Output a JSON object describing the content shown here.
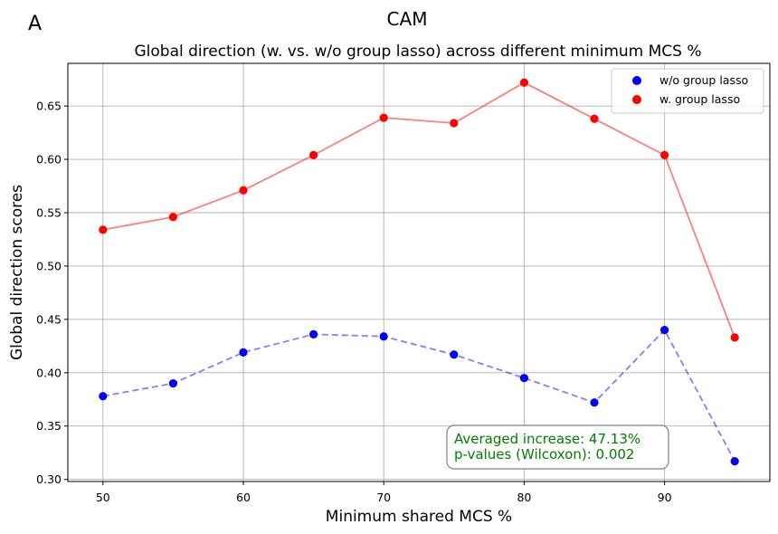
{
  "chart_data": {
    "type": "scatter",
    "panel_label": "A",
    "suptitle": "CAM",
    "title": "Global direction (w. vs. w/o group lasso) across different minimum MCS %",
    "xlabel": "Minimum shared MCS %",
    "ylabel": "Global direction scores",
    "xlim": [
      47.5,
      97.5
    ],
    "ylim": [
      0.298,
      0.69
    ],
    "grid": true,
    "x_ticks": [
      50,
      60,
      70,
      80,
      90
    ],
    "x_tick_labels": [
      "50",
      "60",
      "70",
      "80",
      "90"
    ],
    "y_ticks": [
      0.3,
      0.35,
      0.4,
      0.45,
      0.5,
      0.55,
      0.6,
      0.65
    ],
    "y_tick_labels": [
      "0.30",
      "0.35",
      "0.40",
      "0.45",
      "0.50",
      "0.55",
      "0.60",
      "0.65"
    ],
    "x": [
      50,
      55,
      60,
      65,
      70,
      75,
      80,
      85,
      90,
      95
    ],
    "series": [
      {
        "name": "w/o group lasso",
        "color": "#0000ff",
        "line_style": "dashed",
        "values": [
          0.378,
          0.39,
          0.419,
          0.436,
          0.434,
          0.417,
          0.395,
          0.372,
          0.44,
          0.317
        ]
      },
      {
        "name": "w. group lasso",
        "color": "#ff0000",
        "line_style": "solid",
        "values": [
          0.534,
          0.546,
          0.571,
          0.604,
          0.639,
          0.634,
          0.672,
          0.638,
          0.604,
          0.433
        ]
      }
    ],
    "legend_position": "upper-right",
    "annotation": {
      "lines": [
        "Averaged increase: 47.13%",
        "p-values (Wilcoxon): 0.002"
      ],
      "color": "#008000"
    }
  }
}
